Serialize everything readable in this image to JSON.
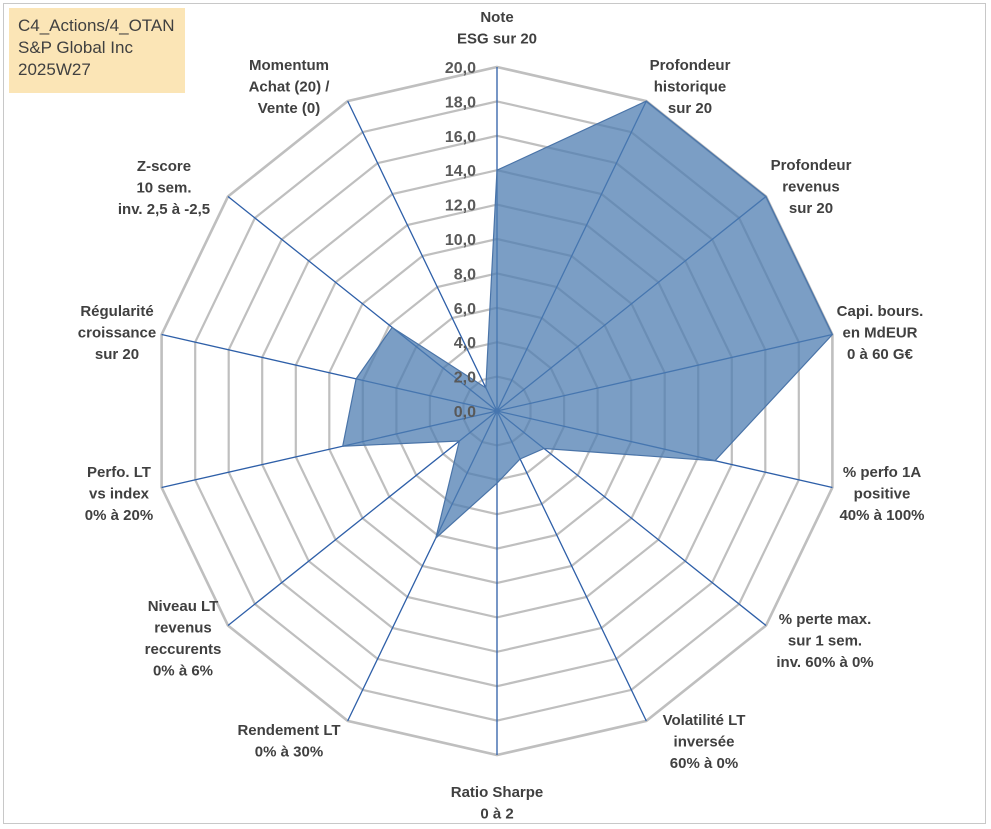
{
  "info": {
    "line1": "C4_Actions/4_OTAN",
    "line2": "S&P Global Inc",
    "line3": "2025W27"
  },
  "chart_data": {
    "type": "radar",
    "r_min": 0,
    "r_max": 20,
    "r_ticks": [
      "0,0",
      "2,0",
      "4,0",
      "6,0",
      "8,0",
      "10,0",
      "12,0",
      "14,0",
      "16,0",
      "18,0",
      "20,0"
    ],
    "gridlines": true,
    "colors": {
      "fill": "#4f7db1",
      "fill_opacity": 0.75,
      "axis_line": "#2e5fa8",
      "grid": "#bfbfbf"
    },
    "axes": [
      {
        "label": [
          "Note",
          "ESG sur 20"
        ],
        "value": 14.0
      },
      {
        "label": [
          "Profondeur",
          "historique",
          "sur 20"
        ],
        "value": 20.0
      },
      {
        "label": [
          "Profondeur",
          "revenus",
          "sur 20"
        ],
        "value": 20.0
      },
      {
        "label": [
          "Capi. bours.",
          "en MdEUR",
          "0 à 60 G€"
        ],
        "value": 20.0
      },
      {
        "label": [
          "% perfo 1A",
          "positive",
          "40% à 100%"
        ],
        "value": 13.0
      },
      {
        "label": [
          "% perte max.",
          "sur 1 sem.",
          "inv. 60% à 0%"
        ],
        "value": 3.5
      },
      {
        "label": [
          "Volatilité LT",
          "inversée",
          "60% à 0%"
        ],
        "value": 3.1
      },
      {
        "label": [
          "Ratio Sharpe",
          "0 à 2"
        ],
        "value": 4.2
      },
      {
        "label": [
          "Rendement LT",
          "0% à 30%"
        ],
        "value": 8.2
      },
      {
        "label": [
          "Niveau LT",
          "revenus",
          "reccurents",
          "0% à 6%"
        ],
        "value": 2.8
      },
      {
        "label": [
          "Perfo. LT",
          "vs index",
          "0% à 20%"
        ],
        "value": 9.2
      },
      {
        "label": [
          "Régularité",
          "croissance",
          "sur 20"
        ],
        "value": 8.4
      },
      {
        "label": [
          "Z-score",
          "10 sem.",
          "inv. 2,5 à -2,5"
        ],
        "value": 7.8
      },
      {
        "label": [
          "Momentum",
          "Achat (20) /",
          "Vente (0)"
        ],
        "value": 1.5
      }
    ]
  }
}
